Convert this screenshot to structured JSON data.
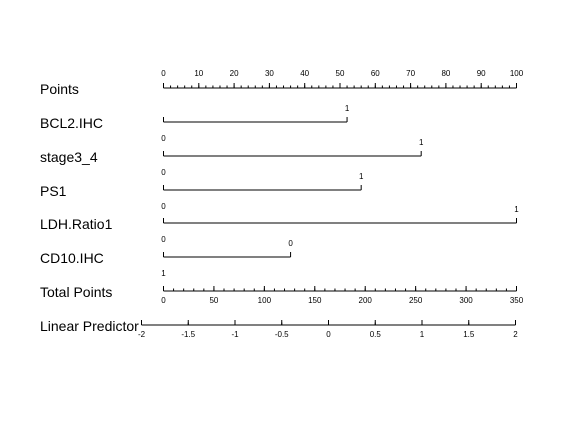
{
  "chart_data": {
    "type": "nomogram",
    "rows": [
      {
        "kind": "axis",
        "label": "Points",
        "range": [
          0,
          100
        ],
        "major_ticks": [
          "0",
          "10",
          "20",
          "30",
          "40",
          "50",
          "60",
          "70",
          "80",
          "90",
          "100"
        ],
        "minor_step": 2
      },
      {
        "kind": "variable",
        "label": "BCL2.IHC",
        "segment": [
          0,
          52
        ],
        "levels": [
          {
            "text": "0",
            "points": 0,
            "pos": "below"
          },
          {
            "text": "1",
            "points": 52,
            "pos": "above"
          }
        ]
      },
      {
        "kind": "variable",
        "label": "stage3_4",
        "segment": [
          0,
          73
        ],
        "levels": [
          {
            "text": "0",
            "points": 0,
            "pos": "below"
          },
          {
            "text": "1",
            "points": 73,
            "pos": "above"
          }
        ]
      },
      {
        "kind": "variable",
        "label": "PS1",
        "segment": [
          0,
          56
        ],
        "levels": [
          {
            "text": "0",
            "points": 0,
            "pos": "below"
          },
          {
            "text": "1",
            "points": 56,
            "pos": "above"
          }
        ]
      },
      {
        "kind": "variable",
        "label": "LDH.Ratio1",
        "segment": [
          0,
          100
        ],
        "levels": [
          {
            "text": "0",
            "points": 0,
            "pos": "below"
          },
          {
            "text": "1",
            "points": 100,
            "pos": "above"
          }
        ]
      },
      {
        "kind": "variable",
        "label": "CD10.IHC",
        "segment": [
          0,
          36
        ],
        "levels": [
          {
            "text": "1",
            "points": 0,
            "pos": "below"
          },
          {
            "text": "0",
            "points": 36,
            "pos": "above"
          }
        ]
      },
      {
        "kind": "axis",
        "label": "Total Points",
        "range": [
          0,
          350
        ],
        "major_ticks": [
          "0",
          "50",
          "100",
          "150",
          "200",
          "250",
          "300",
          "350"
        ],
        "minor_step": 10
      },
      {
        "kind": "axis",
        "label": "Linear Predictor",
        "range": [
          -2,
          2
        ],
        "major_ticks": [
          "-2",
          "-1.5",
          "-1",
          "-0.5",
          "0",
          "0.5",
          "1",
          "1.5",
          "2"
        ],
        "minor_step": 0.5
      }
    ]
  }
}
